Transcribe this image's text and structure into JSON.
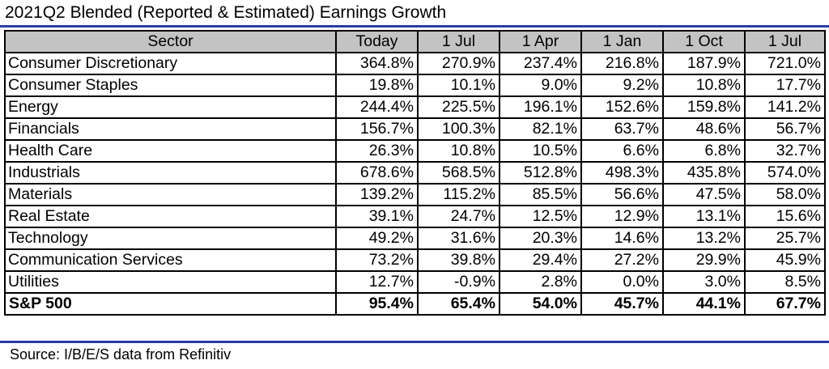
{
  "title": "2021Q2 Blended (Reported & Estimated) Earnings Growth",
  "table": {
    "headers": [
      "Sector",
      "Today",
      "1 Jul",
      "1 Apr",
      "1 Jan",
      "1 Oct",
      "1 Jul"
    ],
    "rows": [
      {
        "sector": "Consumer Discretionary",
        "values": [
          "364.8%",
          "270.9%",
          "237.4%",
          "216.8%",
          "187.9%",
          "721.0%"
        ]
      },
      {
        "sector": "Consumer Staples",
        "values": [
          "19.8%",
          "10.1%",
          "9.0%",
          "9.2%",
          "10.8%",
          "17.7%"
        ]
      },
      {
        "sector": "Energy",
        "values": [
          "244.4%",
          "225.5%",
          "196.1%",
          "152.6%",
          "159.8%",
          "141.2%"
        ]
      },
      {
        "sector": "Financials",
        "values": [
          "156.7%",
          "100.3%",
          "82.1%",
          "63.7%",
          "48.6%",
          "56.7%"
        ]
      },
      {
        "sector": "Health Care",
        "values": [
          "26.3%",
          "10.8%",
          "10.5%",
          "6.6%",
          "6.8%",
          "32.7%"
        ]
      },
      {
        "sector": "Industrials",
        "values": [
          "678.6%",
          "568.5%",
          "512.8%",
          "498.3%",
          "435.8%",
          "574.0%"
        ]
      },
      {
        "sector": "Materials",
        "values": [
          "139.2%",
          "115.2%",
          "85.5%",
          "56.6%",
          "47.5%",
          "58.0%"
        ]
      },
      {
        "sector": "Real Estate",
        "values": [
          "39.1%",
          "24.7%",
          "12.5%",
          "12.9%",
          "13.1%",
          "15.6%"
        ]
      },
      {
        "sector": "Technology",
        "values": [
          "49.2%",
          "31.6%",
          "20.3%",
          "14.6%",
          "13.2%",
          "25.7%"
        ]
      },
      {
        "sector": "Communication Services",
        "values": [
          "73.2%",
          "39.8%",
          "29.4%",
          "27.2%",
          "29.9%",
          "45.9%"
        ]
      },
      {
        "sector": "Utilities",
        "values": [
          "12.7%",
          "-0.9%",
          "2.8%",
          "0.0%",
          "3.0%",
          "8.5%"
        ]
      }
    ],
    "total": {
      "sector": "S&P 500",
      "values": [
        "95.4%",
        "65.4%",
        "54.0%",
        "45.7%",
        "44.1%",
        "67.7%"
      ]
    }
  },
  "source": "Source: I/B/E/S data from Refinitiv",
  "colors": {
    "rule": "#2a3aa6",
    "header_bg": "#c3c3c3",
    "border": "#000000"
  }
}
